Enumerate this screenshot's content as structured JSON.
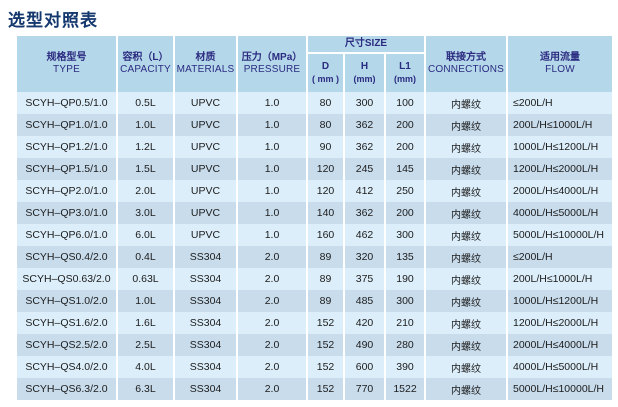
{
  "title": "选型对照表",
  "colors": {
    "title_text": "#14386e",
    "header_bg": "#b5d7ea",
    "header_text": "#2b2b80",
    "row_light": "#dceefa",
    "row_dark": "#c8dcec",
    "separator": "#ffffff",
    "body_text": "#1c1c1c"
  },
  "table": {
    "header": {
      "type": {
        "zh": "规格型号",
        "en": "TYPE"
      },
      "capacity": {
        "zh": "容积（L）",
        "en": "CAPACITY"
      },
      "materials": {
        "zh": "材质",
        "en": "MATERIALS"
      },
      "pressure": {
        "zh": "压力（MPa）",
        "en": "PRESSURE"
      },
      "size": {
        "zh": "尺寸SIZE"
      },
      "size_d": {
        "label": "D",
        "unit": "( mm )"
      },
      "size_h": {
        "label": "H",
        "unit": "(mm)"
      },
      "size_l1": {
        "label": "L1",
        "unit": "(mm)"
      },
      "connections": {
        "zh": "联接方式",
        "en": "CONNECTIONS"
      },
      "flow": {
        "zh": "适用流量",
        "en": "FLOW"
      }
    },
    "rows": [
      {
        "type": "SCYH–QP0.5/1.0",
        "capacity": "0.5L",
        "material": "UPVC",
        "pressure": "1.0",
        "d": "80",
        "h": "300",
        "l1": "100",
        "connection": "内螺纹",
        "flow": "≤200L/H"
      },
      {
        "type": "SCYH–QP1.0/1.0",
        "capacity": "1.0L",
        "material": "UPVC",
        "pressure": "1.0",
        "d": "80",
        "h": "362",
        "l1": "200",
        "connection": "内螺纹",
        "flow": "200L/H≤1000L/H"
      },
      {
        "type": "SCYH–QP1.2/1.0",
        "capacity": "1.2L",
        "material": "UPVC",
        "pressure": "1.0",
        "d": "90",
        "h": "362",
        "l1": "200",
        "connection": "内螺纹",
        "flow": "1000L/H≤1200L/H"
      },
      {
        "type": "SCYH–QP1.5/1.0",
        "capacity": "1.5L",
        "material": "UPVC",
        "pressure": "1.0",
        "d": "120",
        "h": "245",
        "l1": "145",
        "connection": "内螺纹",
        "flow": "1200L/H≤2000L/H"
      },
      {
        "type": "SCYH–QP2.0/1.0",
        "capacity": "2.0L",
        "material": "UPVC",
        "pressure": "1.0",
        "d": "120",
        "h": "412",
        "l1": "250",
        "connection": "内螺纹",
        "flow": "2000L/H≤4000L/H"
      },
      {
        "type": "SCYH–QP3.0/1.0",
        "capacity": "3.0L",
        "material": "UPVC",
        "pressure": "1.0",
        "d": "140",
        "h": "362",
        "l1": "200",
        "connection": "内螺纹",
        "flow": "4000L/H≤5000L/H"
      },
      {
        "type": "SCYH–QP6.0/1.0",
        "capacity": "6.0L",
        "material": "UPVC",
        "pressure": "1.0",
        "d": "160",
        "h": "462",
        "l1": "300",
        "connection": "内螺纹",
        "flow": "5000L/H≤10000L/H"
      },
      {
        "type": "SCYH–QS0.4/2.0",
        "capacity": "0.4L",
        "material": "SS304",
        "pressure": "2.0",
        "d": "89",
        "h": "320",
        "l1": "135",
        "connection": "内螺纹",
        "flow": "≤200L/H"
      },
      {
        "type": "SCYH–QS0.63/2.0",
        "capacity": "0.63L",
        "material": "SS304",
        "pressure": "2.0",
        "d": "89",
        "h": "375",
        "l1": "190",
        "connection": "内螺纹",
        "flow": "200L/H≤1000L/H"
      },
      {
        "type": "SCYH–QS1.0/2.0",
        "capacity": "1.0L",
        "material": "SS304",
        "pressure": "2.0",
        "d": "89",
        "h": "485",
        "l1": "300",
        "connection": "内螺纹",
        "flow": "1000L/H≤1200L/H"
      },
      {
        "type": "SCYH–QS1.6/2.0",
        "capacity": "1.6L",
        "material": "SS304",
        "pressure": "2.0",
        "d": "152",
        "h": "420",
        "l1": "210",
        "connection": "内螺纹",
        "flow": "1200L/H≤2000L/H"
      },
      {
        "type": "SCYH–QS2.5/2.0",
        "capacity": "2.5L",
        "material": "SS304",
        "pressure": "2.0",
        "d": "152",
        "h": "490",
        "l1": "280",
        "connection": "内螺纹",
        "flow": "2000L/H≤4000L/H"
      },
      {
        "type": "SCYH–QS4.0/2.0",
        "capacity": "4.0L",
        "material": "SS304",
        "pressure": "2.0",
        "d": "152",
        "h": "600",
        "l1": "390",
        "connection": "内螺纹",
        "flow": "4000L/H≤5000L/H"
      },
      {
        "type": "SCYH–QS6.3/2.0",
        "capacity": "6.3L",
        "material": "SS304",
        "pressure": "2.0",
        "d": "152",
        "h": "770",
        "l1": "1522",
        "connection": "内螺纹",
        "flow": "5000L/H≤10000L/H"
      }
    ]
  }
}
